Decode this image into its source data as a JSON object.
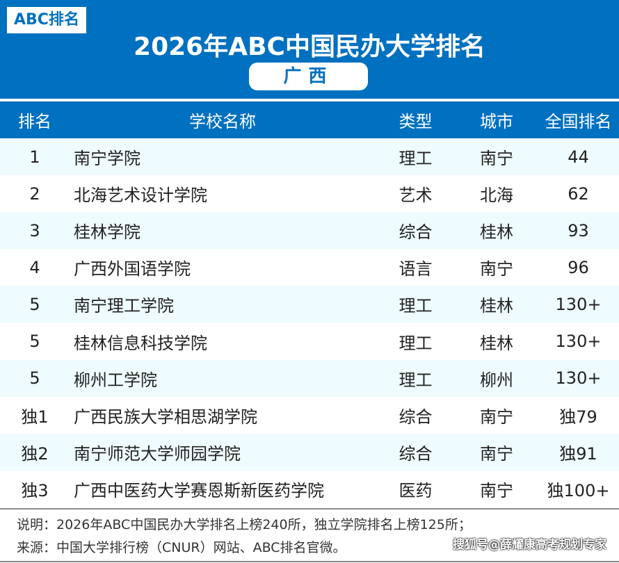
{
  "header": {
    "logo": "ABC排名",
    "title": "2026年ABC中国民办大学排名",
    "region": "广西"
  },
  "table": {
    "columns": [
      "排名",
      "学校名称",
      "类型",
      "城市",
      "全国排名"
    ],
    "rows": [
      {
        "rank": "1",
        "name": "南宁学院",
        "type": "理工",
        "city": "南宁",
        "national": "44"
      },
      {
        "rank": "2",
        "name": "北海艺术设计学院",
        "type": "艺术",
        "city": "北海",
        "national": "62"
      },
      {
        "rank": "3",
        "name": "桂林学院",
        "type": "综合",
        "city": "桂林",
        "national": "93"
      },
      {
        "rank": "4",
        "name": "广西外国语学院",
        "type": "语言",
        "city": "南宁",
        "national": "96"
      },
      {
        "rank": "5",
        "name": "南宁理工学院",
        "type": "理工",
        "city": "桂林",
        "national": "130+"
      },
      {
        "rank": "5",
        "name": "桂林信息科技学院",
        "type": "理工",
        "city": "桂林",
        "national": "130+"
      },
      {
        "rank": "5",
        "name": "柳州工学院",
        "type": "理工",
        "city": "柳州",
        "national": "130+"
      },
      {
        "rank": "独1",
        "name": "广西民族大学相思湖学院",
        "type": "综合",
        "city": "南宁",
        "national": "独79"
      },
      {
        "rank": "独2",
        "name": "南宁师范大学师园学院",
        "type": "综合",
        "city": "南宁",
        "national": "独91"
      },
      {
        "rank": "独3",
        "name": "广西中医药大学赛恩斯新医药学院",
        "type": "医药",
        "city": "南宁",
        "national": "独100+"
      }
    ]
  },
  "footer": {
    "note": "说明：2026年ABC中国民办大学排名上榜240所，独立学院排名上榜125所；",
    "source": "来源：中国大学排行榜（CNUR）网站、ABC排名官微。",
    "watermark": "搜狐号@薛耀康高考规划专家"
  },
  "colors": {
    "brand": "#0070c0",
    "row_alt": "#eefbff"
  }
}
